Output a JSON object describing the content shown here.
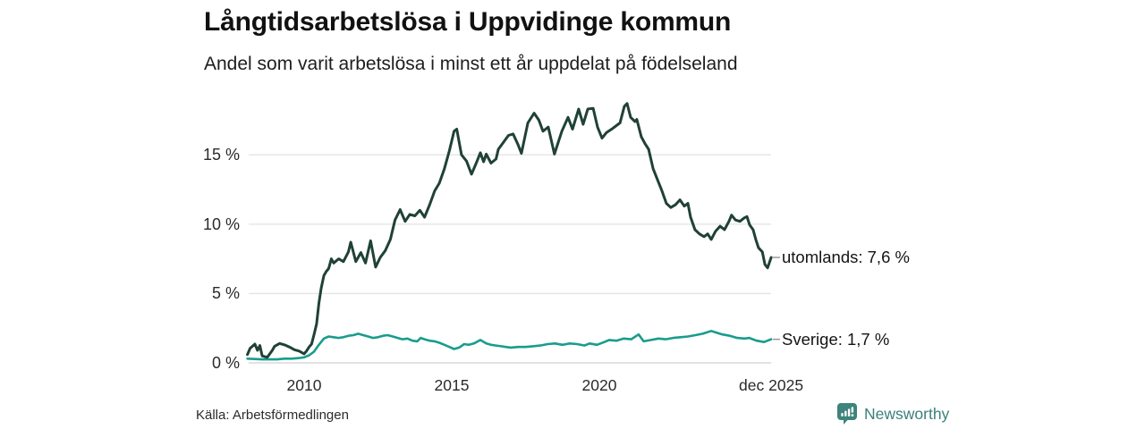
{
  "header": {
    "title": "Långtidsarbetslösa i Uppvidinge kommun",
    "subtitle": "Andel som varit arbetslösa i minst ett år uppdelat på födelseland"
  },
  "footer": {
    "source": "Källa: Arbetsförmedlingen",
    "brand": "Newsworthy"
  },
  "colors": {
    "utomlands_line": "#204136",
    "sverige_line": "#199c8d",
    "grid": "#e4e4e4",
    "zero_line": "#d9d9d9",
    "label_dash": "#999999",
    "brand_teal": "#3e837c",
    "text_dark": "#111111"
  },
  "chart_data": {
    "type": "line",
    "title": "Långtidsarbetslösa i Uppvidinge kommun",
    "subtitle": "Andel som varit arbetslösa i minst ett år uppdelat på födelseland",
    "unit": "%",
    "grid": "horizontal",
    "legend_position": "right-end-labels",
    "x_axis": {
      "range": [
        2008.0,
        2025.92
      ],
      "ticks": [
        {
          "label": "2010",
          "year": 2010
        },
        {
          "label": "2015",
          "year": 2015
        },
        {
          "label": "2020",
          "year": 2020
        },
        {
          "label": "dec 2025",
          "year": 2025.82
        }
      ]
    },
    "y_axis": {
      "range": [
        0,
        19
      ],
      "ticks": [
        {
          "label": "15 %",
          "value": 15
        },
        {
          "label": "10 %",
          "value": 10
        },
        {
          "label": "5 %",
          "value": 5
        },
        {
          "label": "0 %",
          "value": 0
        }
      ]
    },
    "series": [
      {
        "name": "utomlands",
        "end_label": "utomlands: 7,6 %",
        "end_value": 7.6,
        "color": "#204136",
        "stroke_width": 3,
        "points": [
          [
            2008.08,
            0.6
          ],
          [
            2008.17,
            1.05
          ],
          [
            2008.33,
            1.35
          ],
          [
            2008.42,
            0.9
          ],
          [
            2008.5,
            1.25
          ],
          [
            2008.58,
            0.5
          ],
          [
            2008.75,
            0.4
          ],
          [
            2008.92,
            0.9
          ],
          [
            2009.0,
            1.2
          ],
          [
            2009.17,
            1.4
          ],
          [
            2009.33,
            1.3
          ],
          [
            2009.5,
            1.15
          ],
          [
            2009.67,
            0.95
          ],
          [
            2009.83,
            0.85
          ],
          [
            2010.0,
            0.65
          ],
          [
            2010.08,
            0.85
          ],
          [
            2010.17,
            1.15
          ],
          [
            2010.25,
            1.35
          ],
          [
            2010.33,
            2.0
          ],
          [
            2010.42,
            2.8
          ],
          [
            2010.5,
            4.3
          ],
          [
            2010.58,
            5.4
          ],
          [
            2010.67,
            6.3
          ],
          [
            2010.75,
            6.6
          ],
          [
            2010.83,
            6.8
          ],
          [
            2010.92,
            7.5
          ],
          [
            2011.0,
            7.2
          ],
          [
            2011.17,
            7.5
          ],
          [
            2011.33,
            7.3
          ],
          [
            2011.5,
            8.0
          ],
          [
            2011.58,
            8.7
          ],
          [
            2011.75,
            7.3
          ],
          [
            2011.92,
            7.95
          ],
          [
            2012.08,
            7.2
          ],
          [
            2012.25,
            8.8
          ],
          [
            2012.42,
            6.9
          ],
          [
            2012.58,
            7.6
          ],
          [
            2012.75,
            8.1
          ],
          [
            2012.92,
            8.9
          ],
          [
            2013.08,
            10.3
          ],
          [
            2013.25,
            11.05
          ],
          [
            2013.42,
            10.2
          ],
          [
            2013.58,
            10.7
          ],
          [
            2013.75,
            10.6
          ],
          [
            2013.92,
            11.0
          ],
          [
            2014.08,
            10.5
          ],
          [
            2014.25,
            11.4
          ],
          [
            2014.42,
            12.4
          ],
          [
            2014.58,
            12.95
          ],
          [
            2014.75,
            14.0
          ],
          [
            2014.92,
            15.3
          ],
          [
            2015.08,
            16.7
          ],
          [
            2015.17,
            16.85
          ],
          [
            2015.33,
            15.0
          ],
          [
            2015.5,
            14.55
          ],
          [
            2015.67,
            13.6
          ],
          [
            2015.83,
            14.4
          ],
          [
            2015.97,
            15.15
          ],
          [
            2016.08,
            14.5
          ],
          [
            2016.17,
            15.05
          ],
          [
            2016.33,
            14.4
          ],
          [
            2016.5,
            14.7
          ],
          [
            2016.58,
            15.4
          ],
          [
            2016.75,
            15.9
          ],
          [
            2016.92,
            16.4
          ],
          [
            2017.08,
            16.5
          ],
          [
            2017.25,
            15.7
          ],
          [
            2017.36,
            15.1
          ],
          [
            2017.58,
            17.3
          ],
          [
            2017.79,
            18.0
          ],
          [
            2017.95,
            17.5
          ],
          [
            2018.09,
            16.7
          ],
          [
            2018.27,
            17.0
          ],
          [
            2018.48,
            15.05
          ],
          [
            2018.73,
            16.7
          ],
          [
            2018.94,
            17.7
          ],
          [
            2019.09,
            16.85
          ],
          [
            2019.3,
            18.3
          ],
          [
            2019.45,
            17.2
          ],
          [
            2019.61,
            18.3
          ],
          [
            2019.79,
            18.35
          ],
          [
            2019.94,
            17.0
          ],
          [
            2020.09,
            16.2
          ],
          [
            2020.24,
            16.6
          ],
          [
            2020.45,
            16.9
          ],
          [
            2020.7,
            17.3
          ],
          [
            2020.85,
            18.5
          ],
          [
            2020.94,
            18.7
          ],
          [
            2021.06,
            17.7
          ],
          [
            2021.21,
            17.4
          ],
          [
            2021.27,
            17.55
          ],
          [
            2021.42,
            16.3
          ],
          [
            2021.55,
            15.8
          ],
          [
            2021.67,
            15.4
          ],
          [
            2021.82,
            14.0
          ],
          [
            2021.97,
            13.2
          ],
          [
            2022.12,
            12.4
          ],
          [
            2022.27,
            11.5
          ],
          [
            2022.42,
            11.2
          ],
          [
            2022.58,
            11.4
          ],
          [
            2022.73,
            11.75
          ],
          [
            2022.88,
            11.3
          ],
          [
            2023.0,
            11.5
          ],
          [
            2023.09,
            10.5
          ],
          [
            2023.24,
            9.6
          ],
          [
            2023.39,
            9.3
          ],
          [
            2023.55,
            9.1
          ],
          [
            2023.67,
            9.3
          ],
          [
            2023.79,
            8.9
          ],
          [
            2023.94,
            9.5
          ],
          [
            2024.09,
            9.85
          ],
          [
            2024.24,
            9.6
          ],
          [
            2024.39,
            10.2
          ],
          [
            2024.48,
            10.65
          ],
          [
            2024.61,
            10.3
          ],
          [
            2024.76,
            10.2
          ],
          [
            2024.91,
            10.45
          ],
          [
            2025.0,
            10.55
          ],
          [
            2025.09,
            9.95
          ],
          [
            2025.21,
            9.6
          ],
          [
            2025.3,
            8.9
          ],
          [
            2025.39,
            8.3
          ],
          [
            2025.52,
            8.0
          ],
          [
            2025.61,
            7.1
          ],
          [
            2025.7,
            6.85
          ],
          [
            2025.82,
            7.6
          ]
        ]
      },
      {
        "name": "Sverige",
        "end_label": "Sverige: 1,7 %",
        "end_value": 1.7,
        "color": "#199c8d",
        "stroke_width": 2.6,
        "points": [
          [
            2008.08,
            0.3
          ],
          [
            2008.33,
            0.28
          ],
          [
            2008.58,
            0.25
          ],
          [
            2008.83,
            0.25
          ],
          [
            2009.08,
            0.25
          ],
          [
            2009.33,
            0.3
          ],
          [
            2009.58,
            0.3
          ],
          [
            2009.83,
            0.35
          ],
          [
            2010.0,
            0.4
          ],
          [
            2010.17,
            0.55
          ],
          [
            2010.33,
            0.8
          ],
          [
            2010.5,
            1.3
          ],
          [
            2010.67,
            1.75
          ],
          [
            2010.83,
            1.9
          ],
          [
            2011.0,
            1.85
          ],
          [
            2011.17,
            1.8
          ],
          [
            2011.33,
            1.85
          ],
          [
            2011.5,
            1.95
          ],
          [
            2011.67,
            2.0
          ],
          [
            2011.83,
            2.1
          ],
          [
            2012.0,
            2.0
          ],
          [
            2012.17,
            1.9
          ],
          [
            2012.33,
            1.8
          ],
          [
            2012.5,
            1.85
          ],
          [
            2012.67,
            1.95
          ],
          [
            2012.83,
            2.0
          ],
          [
            2013.0,
            1.9
          ],
          [
            2013.17,
            1.8
          ],
          [
            2013.33,
            1.7
          ],
          [
            2013.5,
            1.75
          ],
          [
            2013.67,
            1.6
          ],
          [
            2013.83,
            1.55
          ],
          [
            2013.95,
            1.8
          ],
          [
            2014.08,
            1.7
          ],
          [
            2014.25,
            1.6
          ],
          [
            2014.42,
            1.55
          ],
          [
            2014.58,
            1.45
          ],
          [
            2014.75,
            1.3
          ],
          [
            2014.92,
            1.15
          ],
          [
            2015.08,
            1.0
          ],
          [
            2015.25,
            1.1
          ],
          [
            2015.42,
            1.35
          ],
          [
            2015.58,
            1.3
          ],
          [
            2015.75,
            1.4
          ],
          [
            2015.97,
            1.65
          ],
          [
            2016.17,
            1.4
          ],
          [
            2016.33,
            1.3
          ],
          [
            2016.5,
            1.25
          ],
          [
            2016.67,
            1.2
          ],
          [
            2016.83,
            1.15
          ],
          [
            2017.0,
            1.1
          ],
          [
            2017.25,
            1.15
          ],
          [
            2017.5,
            1.15
          ],
          [
            2017.75,
            1.2
          ],
          [
            2018.0,
            1.25
          ],
          [
            2018.25,
            1.35
          ],
          [
            2018.5,
            1.4
          ],
          [
            2018.75,
            1.3
          ],
          [
            2019.0,
            1.4
          ],
          [
            2019.25,
            1.35
          ],
          [
            2019.5,
            1.25
          ],
          [
            2019.67,
            1.4
          ],
          [
            2019.92,
            1.3
          ],
          [
            2020.17,
            1.5
          ],
          [
            2020.33,
            1.65
          ],
          [
            2020.58,
            1.6
          ],
          [
            2020.83,
            1.75
          ],
          [
            2021.08,
            1.7
          ],
          [
            2021.33,
            2.05
          ],
          [
            2021.5,
            1.55
          ],
          [
            2021.75,
            1.65
          ],
          [
            2022.0,
            1.75
          ],
          [
            2022.25,
            1.7
          ],
          [
            2022.5,
            1.8
          ],
          [
            2022.75,
            1.85
          ],
          [
            2023.0,
            1.9
          ],
          [
            2023.25,
            2.0
          ],
          [
            2023.5,
            2.1
          ],
          [
            2023.79,
            2.3
          ],
          [
            2023.94,
            2.2
          ],
          [
            2024.17,
            2.05
          ],
          [
            2024.42,
            1.95
          ],
          [
            2024.67,
            1.8
          ],
          [
            2024.92,
            1.75
          ],
          [
            2025.08,
            1.8
          ],
          [
            2025.33,
            1.6
          ],
          [
            2025.58,
            1.5
          ],
          [
            2025.82,
            1.7
          ]
        ]
      }
    ]
  }
}
